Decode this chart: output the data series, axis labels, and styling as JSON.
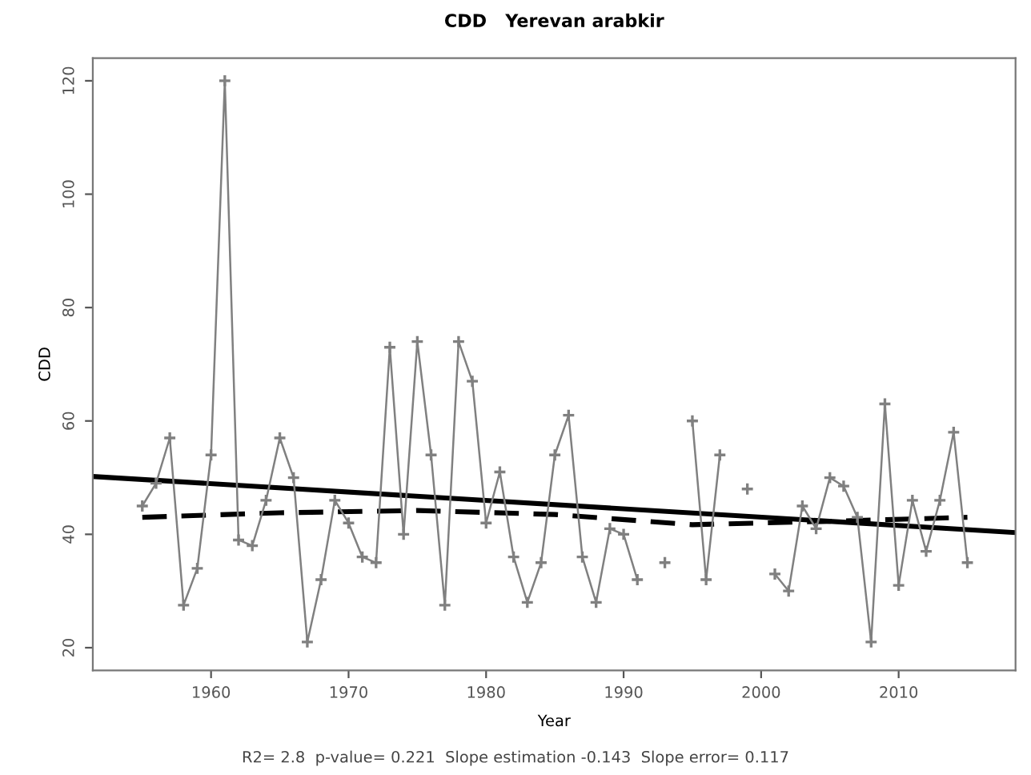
{
  "chart_data": {
    "type": "line",
    "title": "CDD   Yerevan arabkir",
    "xlabel": "Year",
    "ylabel": "CDD",
    "annotations": [
      "R2= 2.8  p-value= 0.221  Slope estimation -0.143  Slope error= 0.117"
    ],
    "xlim": [
      1951.4,
      2018.5
    ],
    "xticks": [
      1960,
      1970,
      1980,
      1990,
      2000,
      2010
    ],
    "ylim": [
      16,
      124
    ],
    "yticks": [
      20,
      40,
      60,
      80,
      100,
      120
    ],
    "grid": false,
    "legend": false,
    "series": [
      {
        "color": "#808080",
        "marker": "cross",
        "line_style": "solid",
        "x": [
          1955,
          1956,
          1957,
          1958,
          1959,
          1960,
          1961,
          1962,
          1963,
          1964,
          1965,
          1966,
          1967,
          1968,
          1969,
          1970,
          1971,
          1972,
          1973,
          1974,
          1975,
          1976,
          1977,
          1978,
          1979,
          1980,
          1981,
          1982,
          1983,
          1984,
          1985,
          1986,
          1987,
          1988,
          1989,
          1990,
          1991,
          1992,
          1993,
          1994,
          1995,
          1996,
          1997,
          1998,
          1999,
          2000,
          2001,
          2002,
          2003,
          2004,
          2005,
          2006,
          2007,
          2008,
          2009,
          2010,
          2011,
          2012,
          2013,
          2014,
          2015
        ],
        "values": [
          45,
          49,
          57,
          27.5,
          34,
          54,
          120,
          39,
          38,
          46,
          57,
          50,
          21,
          32,
          46,
          42,
          36,
          35,
          73,
          40,
          74,
          54,
          27.5,
          74,
          67,
          42,
          51,
          36,
          28,
          35,
          54,
          61,
          36,
          28,
          41,
          40,
          32,
          null,
          35,
          null,
          60,
          32,
          54,
          null,
          48,
          null,
          33,
          30,
          45,
          41,
          50,
          48.5,
          43,
          21,
          63,
          31,
          46,
          37,
          46,
          58,
          35
        ]
      },
      {
        "color": "#000000",
        "marker": "none",
        "line_style": "solid",
        "x": [
          1951.4,
          2018.5
        ],
        "values": [
          50.2,
          40.3
        ]
      },
      {
        "color": "#000000",
        "marker": "none",
        "line_style": "dashed",
        "x": [
          1955,
          1965,
          1975,
          1985,
          1995,
          2005,
          2015
        ],
        "values": [
          43,
          43.8,
          44.2,
          43.5,
          41.7,
          42.3,
          43
        ]
      }
    ]
  }
}
